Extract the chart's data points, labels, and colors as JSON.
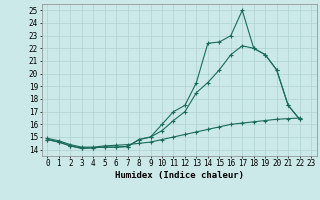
{
  "xlabel": "Humidex (Indice chaleur)",
  "bg_color": "#cce9e9",
  "grid_color": "#b0d0d0",
  "line_color": "#1a6b5a",
  "xlim": [
    -0.5,
    23.5
  ],
  "ylim": [
    13.5,
    25.5
  ],
  "yticks": [
    14,
    15,
    16,
    17,
    18,
    19,
    20,
    21,
    22,
    23,
    24,
    25
  ],
  "xticks": [
    0,
    1,
    2,
    3,
    4,
    5,
    6,
    7,
    8,
    9,
    10,
    11,
    12,
    13,
    14,
    15,
    16,
    17,
    18,
    19,
    20,
    21,
    22,
    23
  ],
  "line1_x": [
    0,
    1,
    2,
    3,
    4,
    5,
    6,
    7,
    8,
    9,
    10,
    11,
    12,
    13,
    14,
    15,
    16,
    17,
    18,
    19,
    20,
    21,
    22,
    23
  ],
  "line1_y": [
    14.8,
    14.6,
    14.3,
    14.1,
    14.15,
    14.2,
    14.2,
    14.25,
    14.8,
    15.0,
    16.0,
    17.0,
    17.5,
    19.3,
    22.4,
    22.5,
    23.0,
    25.0,
    22.0,
    21.5,
    20.3,
    17.5,
    16.4,
    null
  ],
  "line2_x": [
    0,
    1,
    2,
    3,
    4,
    5,
    6,
    7,
    8,
    9,
    10,
    11,
    12,
    13,
    14,
    15,
    16,
    17,
    18,
    19,
    20,
    21,
    22,
    23
  ],
  "line2_y": [
    14.8,
    14.6,
    14.3,
    14.1,
    14.15,
    14.2,
    14.2,
    14.25,
    14.8,
    15.0,
    15.5,
    16.3,
    17.0,
    18.5,
    19.3,
    20.3,
    21.5,
    22.2,
    22.0,
    21.5,
    20.3,
    17.5,
    16.4,
    null
  ],
  "line3_x": [
    0,
    1,
    2,
    3,
    4,
    5,
    6,
    7,
    8,
    9,
    10,
    11,
    12,
    13,
    14,
    15,
    16,
    17,
    18,
    19,
    20,
    21,
    22,
    23
  ],
  "line3_y": [
    14.9,
    14.7,
    14.4,
    14.2,
    14.2,
    14.3,
    14.35,
    14.4,
    14.5,
    14.6,
    14.8,
    15.0,
    15.2,
    15.4,
    15.6,
    15.8,
    16.0,
    16.1,
    16.2,
    16.3,
    16.4,
    16.45,
    16.5,
    null
  ],
  "tick_fontsize": 5.5,
  "xlabel_fontsize": 6.5
}
